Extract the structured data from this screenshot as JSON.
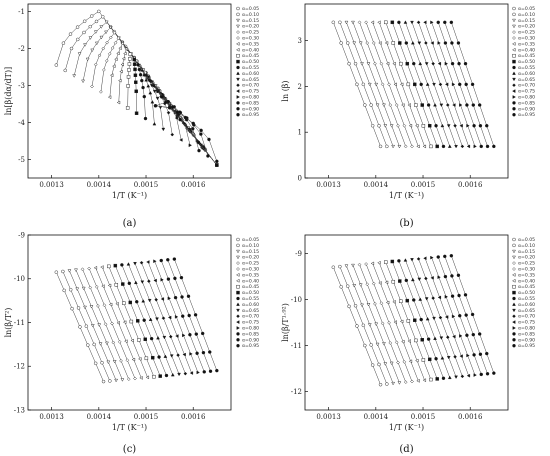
{
  "legend": [
    "α=0.05",
    "α=0.10",
    "α=0.15",
    "α=0.20",
    "α=0.25",
    "α=0.30",
    "α=0.35",
    "α=0.40",
    "α=0.45",
    "α=0.50",
    "α=0.55",
    "α=0.60",
    "α=0.65",
    "α=0.70",
    "α=0.75",
    "α=0.80",
    "α=0.85",
    "α=0.90",
    "α=0.95"
  ],
  "markers": [
    "open-circle",
    "open-circle",
    "open-triangle-down",
    "open-triangle-down",
    "open-diamond",
    "open-diamond",
    "open-triangle-left",
    "open-triangle-left",
    "open-square",
    "filled-square",
    "filled-circle",
    "filled-triangle-up",
    "filled-triangle-down",
    "filled-diamond",
    "filled-triangle-left",
    "filled-triangle-right",
    "filled-hexagon",
    "filled-star",
    "filled-circle"
  ],
  "chart_data": [
    {
      "type": "scatter",
      "panel": "(a)",
      "xlabel": "1/T (K⁻¹)",
      "ylabel": "ln[β(dα/dT)]",
      "xlim": [
        0.00125,
        0.00168
      ],
      "ylim": [
        -5.5,
        -0.8
      ],
      "xticks": [
        "0.0013",
        "0.0014",
        "0.0015",
        "0.0016"
      ],
      "xtick_values": [
        0.0013,
        0.0014,
        0.0015,
        0.0016
      ],
      "yticks": [
        "-5",
        "-4",
        "-3",
        "-2",
        "-1"
      ],
      "ytick_values": [
        -5,
        -4,
        -3,
        -2,
        -1
      ],
      "curves": "peaked",
      "x_first": [
        0.00131,
        0.00165
      ],
      "x_peak": [
        0.0014,
        0.00155
      ],
      "y_first": [
        -2.45,
        -5.05
      ],
      "y_peak": [
        -1.0,
        -3.6
      ],
      "y_last": [
        -5.0,
        -3.6
      ],
      "points_per_series": 7
    },
    {
      "type": "scatter",
      "panel": "(b)",
      "xlabel": "1/T (K⁻¹)",
      "ylabel": "ln (β)",
      "xlim": [
        0.00125,
        0.00168
      ],
      "ylim": [
        0.0,
        3.8
      ],
      "xticks": [
        "0.0013",
        "0.0014",
        "0.0015",
        "0.0016"
      ],
      "xtick_values": [
        0.0013,
        0.0014,
        0.0015,
        0.0016
      ],
      "yticks": [
        "0",
        "1",
        "2",
        "3"
      ],
      "ytick_values": [
        0,
        1,
        2,
        3
      ],
      "curves": "linear",
      "x_first": [
        0.00131,
        0.00156
      ],
      "x_last": [
        0.00141,
        0.00165
      ],
      "y_first": 3.4,
      "y_last": 0.69,
      "points_per_series": 7
    },
    {
      "type": "scatter",
      "panel": "(c)",
      "xlabel": "1/T (K⁻¹)",
      "ylabel": "ln(β/T²)",
      "xlim": [
        0.00125,
        0.00168
      ],
      "ylim": [
        -13.0,
        -9.0
      ],
      "xticks": [
        "0.0013",
        "0.0014",
        "0.0015",
        "0.0016"
      ],
      "xtick_values": [
        0.0013,
        0.0014,
        0.0015,
        0.0016
      ],
      "yticks": [
        "-13",
        "-12",
        "-11",
        "-10",
        "-9"
      ],
      "ytick_values": [
        -13,
        -12,
        -11,
        -10,
        -9
      ],
      "curves": "linear",
      "x_first": [
        0.00131,
        0.00156
      ],
      "x_last": [
        0.00141,
        0.00165
      ],
      "y_first": [
        -9.85,
        -9.55
      ],
      "y_last": [
        -12.35,
        -12.1
      ],
      "points_per_series": 7
    },
    {
      "type": "scatter",
      "panel": "(d)",
      "xlabel": "1/T (K⁻¹)",
      "ylabel": "ln(β/T¹·⁹²)",
      "xlim": [
        0.00125,
        0.00168
      ],
      "ylim": [
        -12.4,
        -8.6
      ],
      "xticks": [
        "0.0013",
        "0.0014",
        "0.0015",
        "0.0016"
      ],
      "xtick_values": [
        0.0013,
        0.0014,
        0.0015,
        0.0016
      ],
      "yticks": [
        "-12",
        "-11",
        "-10",
        "-9"
      ],
      "ytick_values": [
        -12,
        -11,
        -10,
        -9
      ],
      "curves": "linear",
      "x_first": [
        0.00131,
        0.00156
      ],
      "x_last": [
        0.00141,
        0.00165
      ],
      "y_first": [
        -9.3,
        -9.05
      ],
      "y_last": [
        -11.85,
        -11.6
      ],
      "points_per_series": 7
    }
  ]
}
